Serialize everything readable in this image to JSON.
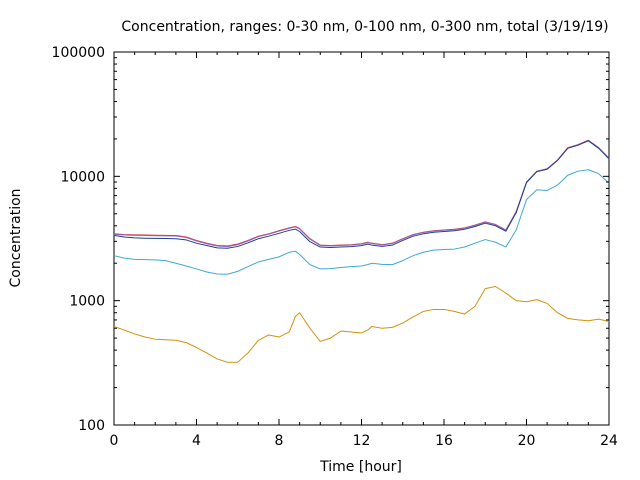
{
  "chart_data": {
    "type": "line",
    "title": "Concentration, ranges: 0-30 nm, 0-100 nm, 0-300 nm, total (3/19/19)",
    "xlabel": "Time [hour]",
    "ylabel": "Concentration",
    "xlim": [
      0,
      24
    ],
    "ylim": [
      100,
      100000
    ],
    "yscale": "log",
    "grid": false,
    "xticks": [
      0,
      4,
      8,
      12,
      16,
      20,
      24
    ],
    "yticks": [
      100,
      1000,
      10000,
      100000
    ],
    "ytick_labels": [
      "100",
      "1000",
      "10000",
      "100000"
    ],
    "x": [
      0,
      0.5,
      1,
      1.5,
      2,
      2.5,
      3,
      3.5,
      4,
      4.5,
      5,
      5.5,
      6,
      6.5,
      7,
      7.5,
      8,
      8.5,
      8.8,
      9,
      9.5,
      10,
      10.5,
      11,
      11.5,
      12,
      12.3,
      12.5,
      13,
      13.5,
      14,
      14.5,
      15,
      15.5,
      16,
      16.5,
      17,
      17.5,
      18,
      18.5,
      19,
      19.5,
      20,
      20.5,
      21,
      21.5,
      22,
      22.5,
      23,
      23.5,
      24
    ],
    "series": [
      {
        "color": "#d62728",
        "values": [
          3450,
          3400,
          3380,
          3370,
          3360,
          3350,
          3340,
          3250,
          3050,
          2900,
          2780,
          2750,
          2850,
          3050,
          3300,
          3450,
          3650,
          3850,
          3950,
          3800,
          3150,
          2800,
          2780,
          2800,
          2820,
          2870,
          2950,
          2900,
          2820,
          2900,
          3150,
          3400,
          3550,
          3650,
          3700,
          3750,
          3850,
          4050,
          4300,
          4100,
          3700,
          5200,
          9000,
          11000,
          11500,
          13500,
          17000,
          18000,
          19500,
          17000,
          14000
        ]
      },
      {
        "color": "#9467bd",
        "values": [
          3420,
          3370,
          3350,
          3340,
          3330,
          3320,
          3310,
          3220,
          3020,
          2870,
          2750,
          2720,
          2820,
          3020,
          3270,
          3420,
          3620,
          3820,
          3920,
          3770,
          3120,
          2780,
          2760,
          2780,
          2800,
          2850,
          2930,
          2880,
          2800,
          2880,
          3130,
          3380,
          3530,
          3630,
          3680,
          3730,
          3830,
          4030,
          4280,
          4080,
          3680,
          5150,
          8950,
          10950,
          11450,
          13450,
          16900,
          17900,
          19400,
          16900,
          13900
        ]
      },
      {
        "color": "#1f3f8f",
        "values": [
          3350,
          3250,
          3200,
          3180,
          3170,
          3160,
          3150,
          3080,
          2900,
          2780,
          2660,
          2640,
          2730,
          2920,
          3150,
          3300,
          3480,
          3680,
          3760,
          3600,
          2980,
          2700,
          2680,
          2700,
          2720,
          2770,
          2850,
          2800,
          2730,
          2800,
          3050,
          3300,
          3450,
          3550,
          3600,
          3650,
          3750,
          3950,
          4200,
          4000,
          3620,
          5100,
          8900,
          10900,
          11400,
          13400,
          16800,
          17800,
          19300,
          16800,
          13800
        ]
      },
      {
        "color": "#3fa9d4",
        "values": [
          2300,
          2200,
          2150,
          2140,
          2130,
          2100,
          2000,
          1900,
          1800,
          1700,
          1640,
          1630,
          1720,
          1880,
          2050,
          2150,
          2250,
          2450,
          2500,
          2350,
          1950,
          1800,
          1810,
          1850,
          1880,
          1900,
          1950,
          2000,
          1960,
          1950,
          2100,
          2300,
          2450,
          2550,
          2580,
          2600,
          2700,
          2900,
          3100,
          2950,
          2700,
          3700,
          6500,
          7800,
          7700,
          8500,
          10200,
          11000,
          11300,
          10500,
          8800
        ]
      },
      {
        "color": "#d4900f",
        "values": [
          620,
          580,
          540,
          510,
          490,
          485,
          480,
          460,
          420,
          380,
          340,
          320,
          320,
          380,
          480,
          530,
          510,
          560,
          750,
          800,
          600,
          470,
          500,
          570,
          560,
          550,
          580,
          620,
          600,
          610,
          660,
          740,
          820,
          850,
          850,
          820,
          780,
          900,
          1250,
          1300,
          1150,
          1000,
          980,
          1020,
          950,
          800,
          720,
          700,
          690,
          710,
          680
        ]
      }
    ]
  }
}
